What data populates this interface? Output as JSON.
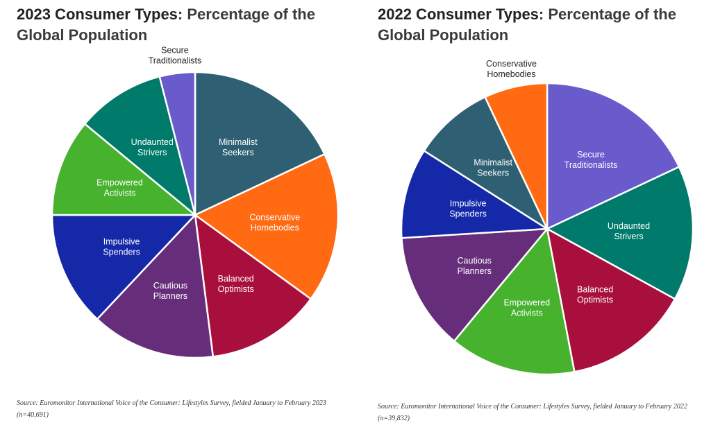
{
  "chart_data": [
    {
      "type": "pie",
      "title_bold": "2023 Consumer Types",
      "title_rest": ": Percentage of the Global Population",
      "source": "Source: Euromonitor International Voice of the Consumer: Lifestyles Survey, fielded January to February 2023 (n=40,691)",
      "slices": [
        {
          "label": "Minimalist Seekers",
          "value": 18,
          "color": "#2e5f73"
        },
        {
          "label": "Conservative Homebodies",
          "value": 17,
          "color": "#ff6a13"
        },
        {
          "label": "Balanced Optimists",
          "value": 13,
          "color": "#a80f3c"
        },
        {
          "label": "Cautious Planners",
          "value": 14,
          "color": "#662e7a"
        },
        {
          "label": "Impulsive Spenders",
          "value": 13,
          "color": "#1428a8"
        },
        {
          "label": "Empowered Activists",
          "value": 11,
          "color": "#47b22e"
        },
        {
          "label": "Undaunted Strivers",
          "value": 10,
          "color": "#007a6a"
        },
        {
          "label": "Secure Traditionalists",
          "value": 4,
          "color": "#6a5bcc"
        }
      ]
    },
    {
      "type": "pie",
      "title_bold": "2022 Consumer Types",
      "title_rest": ": Percentage of the Global Population",
      "source": "Source: Euromonitor International Voice of the Consumer: Lifestyles Survey, fielded January to February 2022 (n=39,832)",
      "slices": [
        {
          "label": "Secure Traditionalists",
          "value": 18,
          "color": "#6a5bcc"
        },
        {
          "label": "Undaunted Strivers",
          "value": 15,
          "color": "#007a6a"
        },
        {
          "label": "Balanced Optimists",
          "value": 14,
          "color": "#a80f3c"
        },
        {
          "label": "Empowered Activists",
          "value": 14,
          "color": "#47b22e"
        },
        {
          "label": "Cautious Planners",
          "value": 13,
          "color": "#662e7a"
        },
        {
          "label": "Impulsive Spenders",
          "value": 10,
          "color": "#1428a8"
        },
        {
          "label": "Minimalist Seekers",
          "value": 9,
          "color": "#2e5f73"
        },
        {
          "label": "Conservative Homebodies",
          "value": 7,
          "color": "#ff6a13"
        }
      ]
    }
  ]
}
